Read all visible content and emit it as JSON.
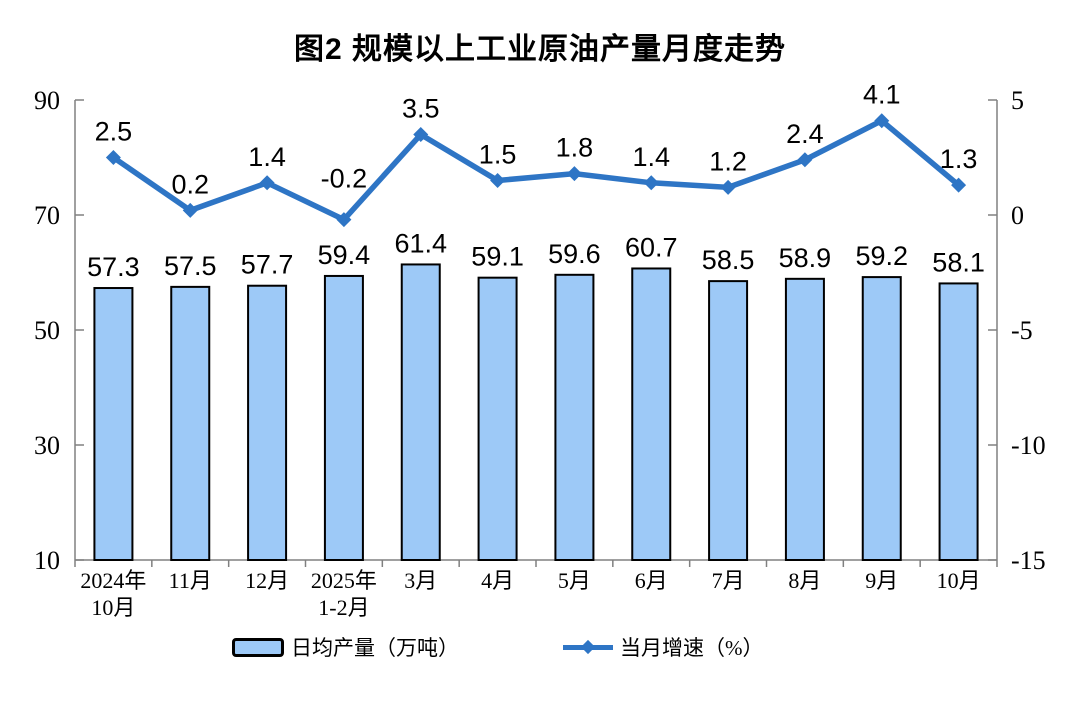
{
  "title": "图2 规模以上工业原油产量月度走势",
  "chart_data": {
    "type": "bar",
    "combo": "bar+line",
    "title": "图2 规模以上工业原油产量月度走势",
    "categories": [
      [
        "2024年",
        "10月"
      ],
      [
        "11月"
      ],
      [
        "12月"
      ],
      [
        "2025年",
        "1-2月"
      ],
      [
        "3月"
      ],
      [
        "4月"
      ],
      [
        "5月"
      ],
      [
        "6月"
      ],
      [
        "7月"
      ],
      [
        "8月"
      ],
      [
        "9月"
      ],
      [
        "10月"
      ]
    ],
    "series": [
      {
        "name": "日均产量（万吨）",
        "type": "bar",
        "axis": "left",
        "values": [
          57.3,
          57.5,
          57.7,
          59.4,
          61.4,
          59.1,
          59.6,
          60.7,
          58.5,
          58.9,
          59.2,
          58.1
        ],
        "fill_color": "#9DC9F7",
        "border_color": "#000000"
      },
      {
        "name": "当月增速（%）",
        "type": "line",
        "axis": "right",
        "values": [
          2.5,
          0.2,
          1.4,
          -0.2,
          3.5,
          1.5,
          1.8,
          1.4,
          1.2,
          2.4,
          4.1,
          1.3
        ],
        "color": "#2E75C5",
        "marker": "diamond"
      }
    ],
    "left_axis": {
      "min": 10,
      "max": 90,
      "ticks": [
        10,
        30,
        50,
        70,
        90
      ]
    },
    "right_axis": {
      "min": -15,
      "max": 5,
      "ticks": [
        -15,
        -10,
        -5,
        0,
        5
      ]
    },
    "axis_color": "#808080",
    "text_color": "#000000",
    "grid": false,
    "data_labels": true,
    "legend_position": "bottom"
  }
}
